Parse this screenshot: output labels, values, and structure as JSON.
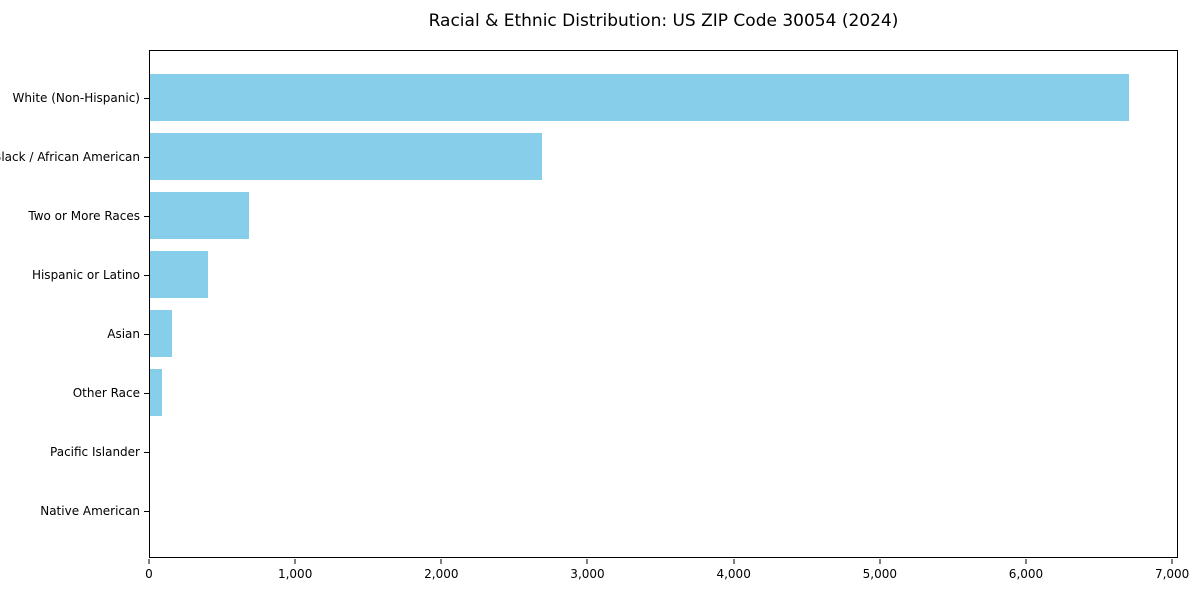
{
  "title": "Racial & Ethnic Distribution: US ZIP Code 30054 (2024)",
  "colors": {
    "bar": "#87CEEB",
    "axis": "#000000",
    "background": "#FFFFFF",
    "text": "#000000"
  },
  "chart_data": {
    "type": "bar",
    "orientation": "horizontal",
    "title": "Racial & Ethnic Distribution: US ZIP Code 30054 (2024)",
    "categories": [
      "White (Non-Hispanic)",
      "Black / African American",
      "Two or More Races",
      "Hispanic or Latino",
      "Asian",
      "Other Race",
      "Pacific Islander",
      "Native American"
    ],
    "values": [
      6710,
      2690,
      680,
      400,
      150,
      80,
      0,
      0
    ],
    "xlabel": "",
    "ylabel": "",
    "xlim": [
      0,
      7040
    ],
    "x_ticks": [
      0,
      1000,
      2000,
      3000,
      4000,
      5000,
      6000,
      7000
    ],
    "x_tick_labels": [
      "0",
      "1,000",
      "2,000",
      "3,000",
      "4,000",
      "5,000",
      "6,000",
      "7,000"
    ],
    "grid": false,
    "legend": null,
    "bar_color": "#87CEEB"
  }
}
